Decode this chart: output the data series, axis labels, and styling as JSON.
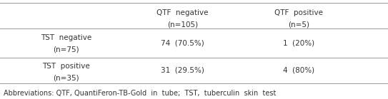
{
  "col1_header_line1": "QTF  negative",
  "col1_header_line2": "(n=105)",
  "col2_header_line1": "QTF  positive",
  "col2_header_line2": "(n=5)",
  "row1_label_line1": "TST  negative",
  "row1_label_line2": "(n=75)",
  "row2_label_line1": "TST  positive",
  "row2_label_line2": "(n=35)",
  "cell_11": "74  (70.5%)",
  "cell_12": "1  (20%)",
  "cell_21": "31  (29.5%)",
  "cell_22": "4  (80%)",
  "footnote": "Abbreviations: QTF, QuantiFeron-TB-Gold  in  tube;  TST,  tuberculin  skin  test",
  "font_size": 7.5,
  "footnote_font_size": 7.0,
  "line_color": "#999999",
  "text_color": "#333333",
  "fig_width": 5.43,
  "fig_height": 1.39,
  "dpi": 100
}
